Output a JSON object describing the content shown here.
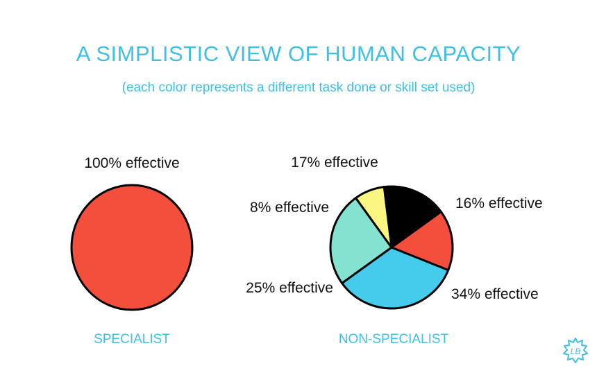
{
  "title": "A SIMPLISTIC VIEW OF HUMAN CAPACITY",
  "subtitle": "(each color represents a different task done or skill set used)",
  "logo_text": "LB",
  "chart_data": [
    {
      "type": "pie",
      "name": "SPECIALIST",
      "caption": "SPECIALIST",
      "slices": [
        {
          "label": "100% effective",
          "value": 100,
          "color": "#f44f3d"
        }
      ]
    },
    {
      "type": "pie",
      "name": "NON-SPECIALIST",
      "caption": "NON-SPECIALIST",
      "slices": [
        {
          "label": "17% effective",
          "value": 17,
          "color": "#000000"
        },
        {
          "label": "16% effective",
          "value": 16,
          "color": "#f44f3d"
        },
        {
          "label": "34% effective",
          "value": 34,
          "color": "#45ccec"
        },
        {
          "label": "25% effective",
          "value": 25,
          "color": "#84e3d0"
        },
        {
          "label": "8% effective",
          "value": 8,
          "color": "#fbf582"
        }
      ]
    }
  ]
}
